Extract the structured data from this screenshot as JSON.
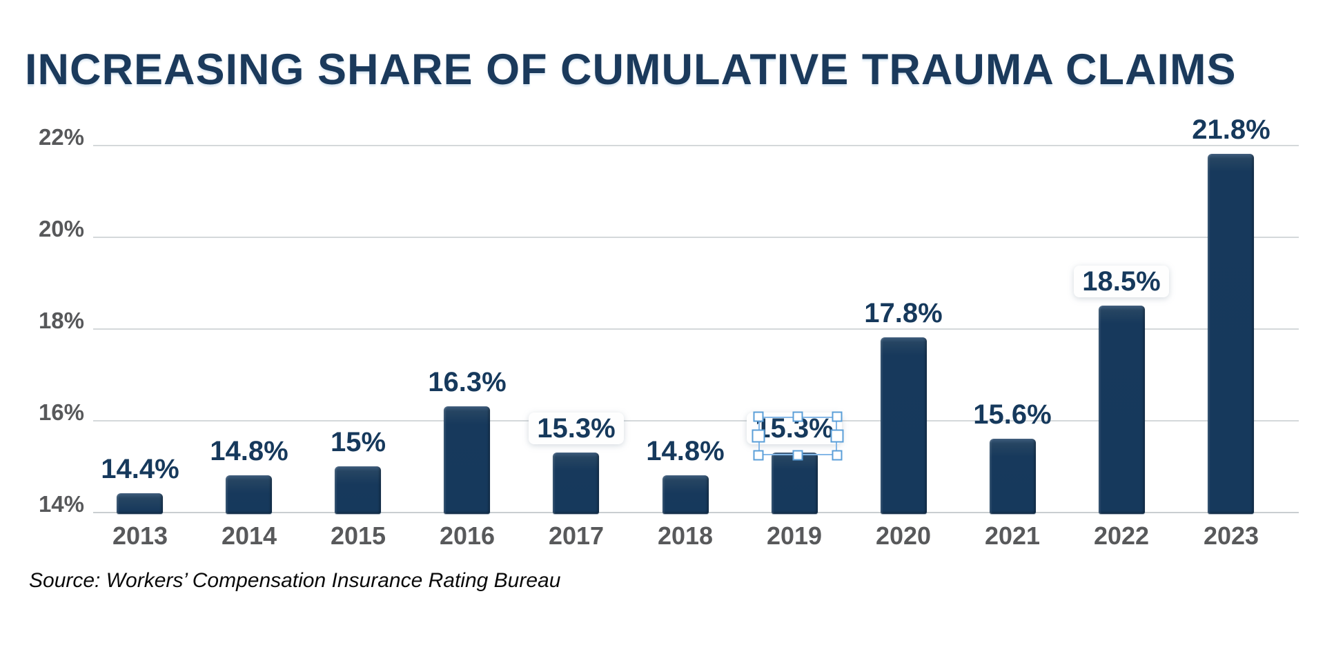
{
  "page": {
    "background": "#ffffff"
  },
  "title": {
    "text": "INCREASING SHARE OF CUMULATIVE TRAUMA CLAIMS"
  },
  "source_note": {
    "text": "Source: Workers’ Compensation Insurance Rating Bureau"
  },
  "colors": {
    "title": "#1B3A5C",
    "bar_fill": "#16395C",
    "bar_top_highlight": "#3E5C7C",
    "value_label": "#16395C",
    "y_axis_label": "#57585A",
    "year_label": "#58595B",
    "gridline": "#D4D8DA",
    "baseline": "#C9CED1",
    "selection_blue": "#84B7E7",
    "selection_handle_border": "#5B9FD8"
  },
  "y_axis": {
    "tick_labels": [
      "22%",
      "20%",
      "18%",
      "16%",
      "14%"
    ],
    "tick_values": [
      22,
      20,
      18,
      16,
      14
    ]
  },
  "chart_data": {
    "type": "bar",
    "title": "INCREASING SHARE OF CUMULATIVE TRAUMA CLAIMS",
    "categories": [
      "2013",
      "2014",
      "2015",
      "2016",
      "2017",
      "2018",
      "2019",
      "2020",
      "2021",
      "2022",
      "2023"
    ],
    "values": [
      14.4,
      14.8,
      15.0,
      16.3,
      15.3,
      14.8,
      15.3,
      17.8,
      15.6,
      18.5,
      21.8
    ],
    "bar_labels": [
      "14.4%",
      "14.8%",
      "15%",
      "16.3%",
      "15.3%",
      "14.8%",
      "15.3%",
      "17.8%",
      "15.6%",
      "18.5%",
      "21.8%"
    ],
    "halo_label_indices": [
      4,
      6,
      9
    ],
    "xlabel": "",
    "ylabel": "",
    "ylim": [
      14,
      22
    ],
    "y_tick_step": 2,
    "grid": true,
    "legend": false,
    "bar_color": "#16395C",
    "source": "Source: Workers’ Compensation Insurance Rating Bureau"
  },
  "selection_overlay": {
    "selected_bar_year": "2019",
    "selected_label": "15.3%",
    "handle_count": 8
  }
}
